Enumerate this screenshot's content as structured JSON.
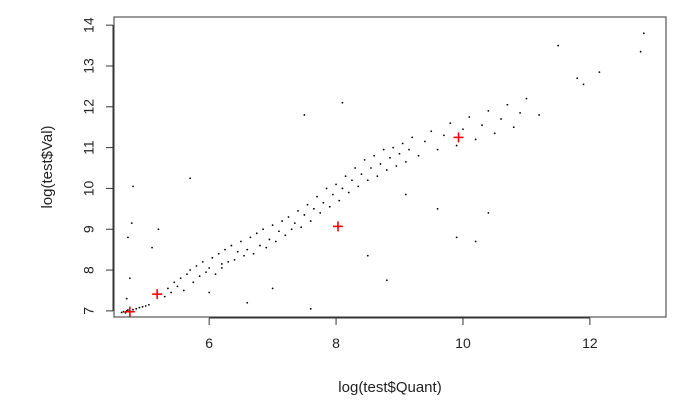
{
  "chart_data": {
    "type": "scatter",
    "title": "",
    "xlabel": "log(test$Quant)",
    "ylabel": "log(test$Val)",
    "xlim": [
      4.5,
      13.2
    ],
    "ylim": [
      6.85,
      14.2
    ],
    "xticks": [
      6,
      8,
      10,
      12
    ],
    "yticks": [
      7,
      8,
      9,
      10,
      11,
      12,
      13,
      14
    ],
    "grid": false,
    "legend": "none",
    "series": [
      {
        "marker": "dot",
        "color": "#000000",
        "description": "dense cloud of small black points along a rising diagonal band",
        "points": [
          [
            4.62,
            6.96
          ],
          [
            4.65,
            6.98
          ],
          [
            4.68,
            6.95
          ],
          [
            4.7,
            7.0
          ],
          [
            4.72,
            7.02
          ],
          [
            4.75,
            6.99
          ],
          [
            4.8,
            7.03
          ],
          [
            4.85,
            7.05
          ],
          [
            4.9,
            7.08
          ],
          [
            4.95,
            7.1
          ],
          [
            5.0,
            7.12
          ],
          [
            5.05,
            7.15
          ],
          [
            4.7,
            7.3
          ],
          [
            4.75,
            7.8
          ],
          [
            4.72,
            8.8
          ],
          [
            4.78,
            9.15
          ],
          [
            4.8,
            10.05
          ],
          [
            5.1,
            8.55
          ],
          [
            5.2,
            9.0
          ],
          [
            5.3,
            7.35
          ],
          [
            5.35,
            7.55
          ],
          [
            5.4,
            7.45
          ],
          [
            5.45,
            7.7
          ],
          [
            5.5,
            7.6
          ],
          [
            5.55,
            7.8
          ],
          [
            5.6,
            7.5
          ],
          [
            5.65,
            7.9
          ],
          [
            5.7,
            8.0
          ],
          [
            5.75,
            7.7
          ],
          [
            5.8,
            8.1
          ],
          [
            5.85,
            7.85
          ],
          [
            5.9,
            8.2
          ],
          [
            5.95,
            7.95
          ],
          [
            6.0,
            8.05
          ],
          [
            6.05,
            8.3
          ],
          [
            6.1,
            7.9
          ],
          [
            6.15,
            8.4
          ],
          [
            6.2,
            8.15
          ],
          [
            6.25,
            8.5
          ],
          [
            6.3,
            8.2
          ],
          [
            6.35,
            8.6
          ],
          [
            6.4,
            8.25
          ],
          [
            6.45,
            8.45
          ],
          [
            6.5,
            8.7
          ],
          [
            6.55,
            8.35
          ],
          [
            6.6,
            8.5
          ],
          [
            6.65,
            8.8
          ],
          [
            6.7,
            8.4
          ],
          [
            6.75,
            8.9
          ],
          [
            6.8,
            8.6
          ],
          [
            6.85,
            9.0
          ],
          [
            6.9,
            8.55
          ],
          [
            6.95,
            8.75
          ],
          [
            7.0,
            9.1
          ],
          [
            7.05,
            8.7
          ],
          [
            7.1,
            8.95
          ],
          [
            7.15,
            9.2
          ],
          [
            7.2,
            8.85
          ],
          [
            7.25,
            9.3
          ],
          [
            7.3,
            9.0
          ],
          [
            7.35,
            9.15
          ],
          [
            7.4,
            9.45
          ],
          [
            7.45,
            9.05
          ],
          [
            7.5,
            9.35
          ],
          [
            7.55,
            9.6
          ],
          [
            7.6,
            9.2
          ],
          [
            7.65,
            9.5
          ],
          [
            7.7,
            9.8
          ],
          [
            7.75,
            9.4
          ],
          [
            7.8,
            9.65
          ],
          [
            7.85,
            10.0
          ],
          [
            7.9,
            9.55
          ],
          [
            7.95,
            9.85
          ],
          [
            8.0,
            10.1
          ],
          [
            8.05,
            9.7
          ],
          [
            8.1,
            10.0
          ],
          [
            8.15,
            10.3
          ],
          [
            8.2,
            9.9
          ],
          [
            8.25,
            10.2
          ],
          [
            8.3,
            10.5
          ],
          [
            8.35,
            10.05
          ],
          [
            8.4,
            10.35
          ],
          [
            8.45,
            10.7
          ],
          [
            8.5,
            10.2
          ],
          [
            8.55,
            10.5
          ],
          [
            8.6,
            10.8
          ],
          [
            8.65,
            10.3
          ],
          [
            8.7,
            10.6
          ],
          [
            8.75,
            10.95
          ],
          [
            8.8,
            10.45
          ],
          [
            8.85,
            10.75
          ],
          [
            8.9,
            11.0
          ],
          [
            8.95,
            10.55
          ],
          [
            9.0,
            10.85
          ],
          [
            9.05,
            11.1
          ],
          [
            9.1,
            10.65
          ],
          [
            9.15,
            10.95
          ],
          [
            9.2,
            11.25
          ],
          [
            9.3,
            10.8
          ],
          [
            9.4,
            11.15
          ],
          [
            9.5,
            11.4
          ],
          [
            9.6,
            10.95
          ],
          [
            9.7,
            11.3
          ],
          [
            9.8,
            11.6
          ],
          [
            9.9,
            11.05
          ],
          [
            10.0,
            11.45
          ],
          [
            10.1,
            11.75
          ],
          [
            10.2,
            11.2
          ],
          [
            10.3,
            11.55
          ],
          [
            10.4,
            11.9
          ],
          [
            10.5,
            11.35
          ],
          [
            10.6,
            11.7
          ],
          [
            10.7,
            12.05
          ],
          [
            10.8,
            11.5
          ],
          [
            10.9,
            11.85
          ],
          [
            11.0,
            12.2
          ],
          [
            11.2,
            11.8
          ],
          [
            11.5,
            13.5
          ],
          [
            11.8,
            12.7
          ],
          [
            11.9,
            12.55
          ],
          [
            12.15,
            12.85
          ],
          [
            12.8,
            13.35
          ],
          [
            12.85,
            13.8
          ],
          [
            5.7,
            10.25
          ],
          [
            6.2,
            8.05
          ],
          [
            7.5,
            11.8
          ],
          [
            8.1,
            12.1
          ],
          [
            9.6,
            9.5
          ],
          [
            10.2,
            8.7
          ],
          [
            9.9,
            8.8
          ],
          [
            10.4,
            9.4
          ],
          [
            7.6,
            7.05
          ],
          [
            8.5,
            8.35
          ],
          [
            9.1,
            9.85
          ],
          [
            6.0,
            7.45
          ],
          [
            6.6,
            7.2
          ],
          [
            7.0,
            7.55
          ],
          [
            8.8,
            7.75
          ]
        ]
      },
      {
        "marker": "plus",
        "color": "#ff0000",
        "description": "highlighted points",
        "points": [
          [
            4.75,
            6.98
          ],
          [
            5.18,
            7.41
          ],
          [
            8.03,
            9.07
          ],
          [
            9.93,
            11.25
          ]
        ]
      }
    ]
  }
}
